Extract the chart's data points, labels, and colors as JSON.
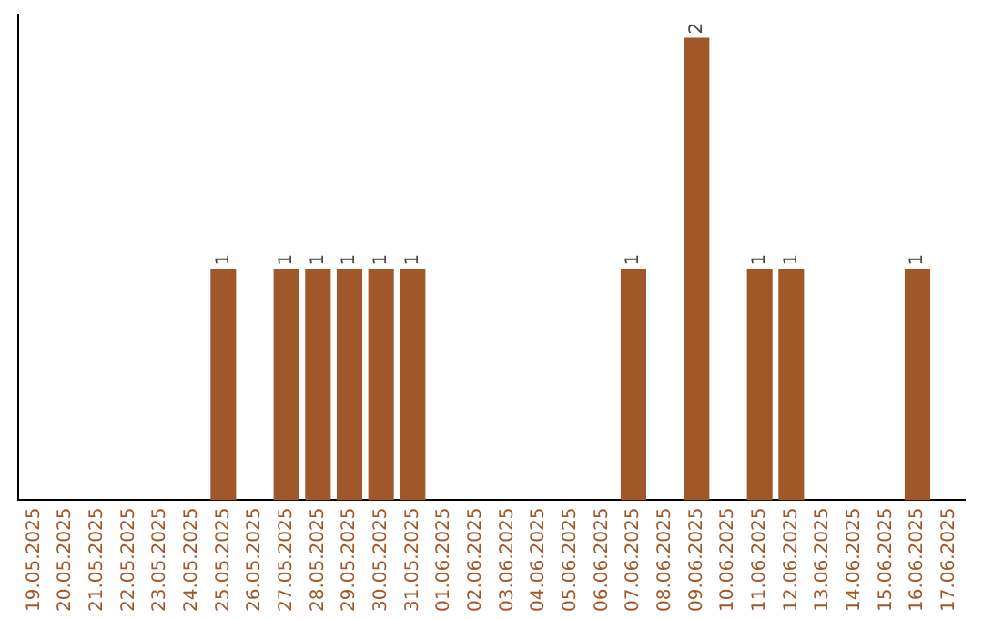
{
  "chart_data": {
    "type": "bar",
    "categories": [
      "19.05.2025",
      "20.05.2025",
      "21.05.2025",
      "22.05.2025",
      "23.05.2025",
      "24.05.2025",
      "25.05.2025",
      "26.05.2025",
      "27.05.2025",
      "28.05.2025",
      "29.05.2025",
      "30.05.2025",
      "31.05.2025",
      "01.06.2025",
      "02.06.2025",
      "03.06.2025",
      "04.06.2025",
      "05.06.2025",
      "06.06.2025",
      "07.06.2025",
      "08.06.2025",
      "09.06.2025",
      "10.06.2025",
      "11.06.2025",
      "12.06.2025",
      "13.06.2025",
      "14.06.2025",
      "15.06.2025",
      "16.06.2025",
      "17.06.2025"
    ],
    "values": [
      0,
      0,
      0,
      0,
      0,
      0,
      1,
      0,
      1,
      1,
      1,
      1,
      1,
      0,
      0,
      0,
      0,
      0,
      0,
      1,
      0,
      2,
      0,
      1,
      1,
      0,
      0,
      0,
      1,
      0
    ],
    "value_labels": [
      null,
      null,
      null,
      null,
      null,
      null,
      "1",
      null,
      "1",
      "1",
      "1",
      "1",
      "1",
      null,
      null,
      null,
      null,
      null,
      null,
      "1",
      null,
      "2",
      null,
      "1",
      "1",
      null,
      null,
      null,
      "1",
      null
    ],
    "color": "#a0582a",
    "grid": false,
    "legend": false
  }
}
